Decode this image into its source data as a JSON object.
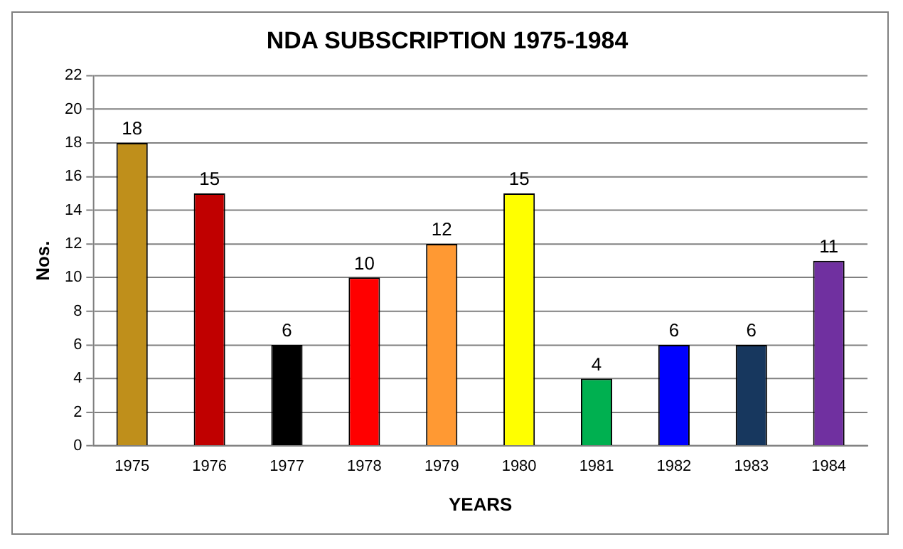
{
  "chart_data": {
    "type": "bar",
    "title": "NDA SUBSCRIPTION 1975-1984",
    "xlabel": "YEARS",
    "ylabel": "Nos.",
    "categories": [
      "1975",
      "1976",
      "1977",
      "1978",
      "1979",
      "1980",
      "1981",
      "1982",
      "1983",
      "1984"
    ],
    "values": [
      18,
      15,
      6,
      10,
      12,
      15,
      4,
      6,
      6,
      11
    ],
    "colors": [
      "#bf8f1b",
      "#c00000",
      "#000000",
      "#ff0000",
      "#ff9933",
      "#ffff00",
      "#00b050",
      "#0000ff",
      "#17375e",
      "#7030a0"
    ],
    "ylim": [
      0,
      22
    ],
    "yticks": [
      0,
      2,
      4,
      6,
      8,
      10,
      12,
      14,
      16,
      18,
      20,
      22
    ],
    "grid": "y",
    "legend": false,
    "data_labels": true
  }
}
